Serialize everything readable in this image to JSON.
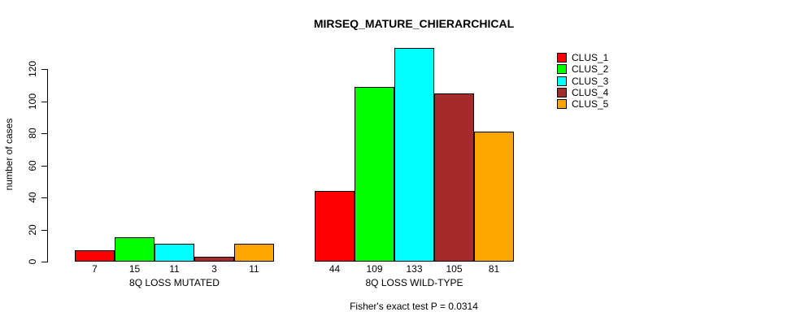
{
  "figure": {
    "title": "MIRSEQ_MATURE_CHIERARCHICAL",
    "subtitle": "Fisher's exact test P = 0.0314",
    "ylabel": "number of cases"
  },
  "chart_data": {
    "type": "bar",
    "title": "MIRSEQ_MATURE_CHIERARCHICAL",
    "annotation": "Fisher's exact test P = 0.0314",
    "ylabel": "number of cases",
    "xlabel": "",
    "categories": [
      "8Q LOSS MUTATED",
      "8Q LOSS WILD-TYPE"
    ],
    "series": [
      {
        "name": "CLUS_1",
        "color": "#FF0000",
        "values": [
          7,
          44
        ]
      },
      {
        "name": "CLUS_2",
        "color": "#00FF00",
        "values": [
          15,
          109
        ]
      },
      {
        "name": "CLUS_3",
        "color": "#00FFFF",
        "values": [
          11,
          133
        ]
      },
      {
        "name": "CLUS_4",
        "color": "#A52A2A",
        "values": [
          3,
          105
        ]
      },
      {
        "name": "CLUS_5",
        "color": "#FFA500",
        "values": [
          11,
          81
        ]
      }
    ],
    "yticks": [
      0,
      20,
      40,
      60,
      80,
      100,
      120
    ],
    "ylim": [
      0,
      133
    ],
    "bar_value_labels": true,
    "legend_position": "top-right",
    "grid": false
  }
}
